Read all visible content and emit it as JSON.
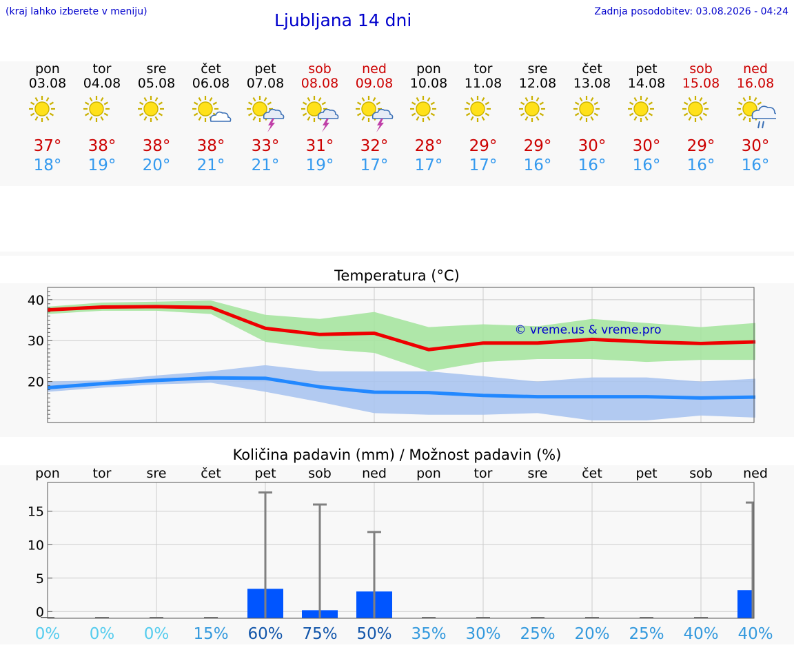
{
  "header": {
    "hint": "(kraj lahko izberete v meniju)",
    "title": "Ljubljana 14 dni",
    "updated": "Zadnja posodobitev: 03.08.2026 - 04:24"
  },
  "forecast": [
    {
      "day": "pon",
      "date": "03.08",
      "icon": "sun-icon",
      "max": "37°",
      "min": "18°",
      "weekend": false
    },
    {
      "day": "tor",
      "date": "04.08",
      "icon": "sun-icon",
      "max": "38°",
      "min": "19°",
      "weekend": false
    },
    {
      "day": "sre",
      "date": "05.08",
      "icon": "sun-icon",
      "max": "38°",
      "min": "20°",
      "weekend": false
    },
    {
      "day": "čet",
      "date": "06.08",
      "icon": "sun-cloud-icon",
      "max": "38°",
      "min": "21°",
      "weekend": false
    },
    {
      "day": "pet",
      "date": "07.08",
      "icon": "sun-storm-icon",
      "max": "33°",
      "min": "21°",
      "weekend": false
    },
    {
      "day": "sob",
      "date": "08.08",
      "icon": "sun-storm-icon",
      "max": "31°",
      "min": "19°",
      "weekend": true
    },
    {
      "day": "ned",
      "date": "09.08",
      "icon": "sun-storm-icon",
      "max": "32°",
      "min": "17°",
      "weekend": true
    },
    {
      "day": "pon",
      "date": "10.08",
      "icon": "sun-icon",
      "max": "28°",
      "min": "17°",
      "weekend": false
    },
    {
      "day": "tor",
      "date": "11.08",
      "icon": "sun-icon",
      "max": "29°",
      "min": "17°",
      "weekend": false
    },
    {
      "day": "sre",
      "date": "12.08",
      "icon": "sun-icon",
      "max": "29°",
      "min": "16°",
      "weekend": false
    },
    {
      "day": "čet",
      "date": "13.08",
      "icon": "sun-icon",
      "max": "30°",
      "min": "16°",
      "weekend": false
    },
    {
      "day": "pet",
      "date": "14.08",
      "icon": "sun-icon",
      "max": "30°",
      "min": "16°",
      "weekend": false
    },
    {
      "day": "sob",
      "date": "15.08",
      "icon": "sun-icon",
      "max": "29°",
      "min": "16°",
      "weekend": true
    },
    {
      "day": "ned",
      "date": "16.08",
      "icon": "sun-rain-icon",
      "max": "30°",
      "min": "16°",
      "weekend": true
    }
  ],
  "colors": {
    "max_line": "#ee0000",
    "max_band": "#a6e4a0",
    "min_line": "#2288ff",
    "min_band": "#aac4f0",
    "bar": "#0055ff",
    "whisker": "#808080",
    "weekend": "#cc0000",
    "low_prob": "#55ccee",
    "high_prob": "#1155aa"
  },
  "chart_data": [
    {
      "type": "line",
      "title": "Temperatura (°C)",
      "watermark": "© vreme.us & vreme.pro",
      "x": [
        "03.08",
        "04.08",
        "05.08",
        "06.08",
        "07.08",
        "08.08",
        "09.08",
        "10.08",
        "11.08",
        "12.08",
        "13.08",
        "14.08",
        "15.08",
        "16.08"
      ],
      "ylim": [
        10,
        43
      ],
      "yticks": [
        20,
        30,
        40
      ],
      "series": [
        {
          "key": "max",
          "values": [
            37.5,
            38.2,
            38.3,
            38.1,
            33.0,
            31.5,
            31.8,
            27.8,
            29.4,
            29.4,
            30.3,
            29.7,
            29.3,
            29.7
          ],
          "band_low": [
            36.5,
            37.3,
            37.3,
            36.5,
            29.7,
            28.0,
            27.0,
            22.5,
            24.8,
            25.5,
            25.5,
            24.8,
            25.3,
            25.3
          ],
          "band_high": [
            38.3,
            39.3,
            39.5,
            39.8,
            36.3,
            35.3,
            37.0,
            33.3,
            34.0,
            33.5,
            35.3,
            34.3,
            33.3,
            34.3
          ]
        },
        {
          "key": "min",
          "values": [
            18.5,
            19.5,
            20.3,
            20.9,
            20.8,
            18.7,
            17.4,
            17.3,
            16.6,
            16.3,
            16.3,
            16.3,
            16.0,
            16.2
          ],
          "band_low": [
            17.5,
            18.5,
            19.3,
            19.7,
            17.5,
            15.0,
            12.3,
            11.9,
            11.9,
            12.3,
            10.5,
            10.5,
            11.7,
            11.2
          ],
          "band_high": [
            20.0,
            20.3,
            21.5,
            22.5,
            24.0,
            22.5,
            22.5,
            22.5,
            21.3,
            20.0,
            21.0,
            21.0,
            20.0,
            20.7
          ]
        }
      ]
    },
    {
      "type": "bar",
      "title": "Količina padavin (mm) / Možnost padavin (%)",
      "categories": [
        "pon",
        "tor",
        "sre",
        "čet",
        "pet",
        "sob",
        "ned",
        "pon",
        "tor",
        "sre",
        "čet",
        "pet",
        "sob",
        "ned"
      ],
      "ylim": [
        -1,
        19.3
      ],
      "yticks": [
        0,
        5,
        10,
        15
      ],
      "series": [
        {
          "key": "amount",
          "values": [
            0,
            0,
            0,
            0,
            3.4,
            0.2,
            3.0,
            0,
            0,
            0,
            0,
            0,
            0,
            3.2
          ]
        },
        {
          "key": "max",
          "values": [
            0,
            0,
            0,
            0,
            17.8,
            16.0,
            11.9,
            0,
            0,
            0,
            0,
            0,
            0,
            16.3
          ]
        },
        {
          "key": "probability",
          "values": [
            "0%",
            "0%",
            "0%",
            "15%",
            "60%",
            "75%",
            "50%",
            "35%",
            "30%",
            "25%",
            "20%",
            "25%",
            "40%",
            "40%"
          ]
        }
      ]
    }
  ]
}
